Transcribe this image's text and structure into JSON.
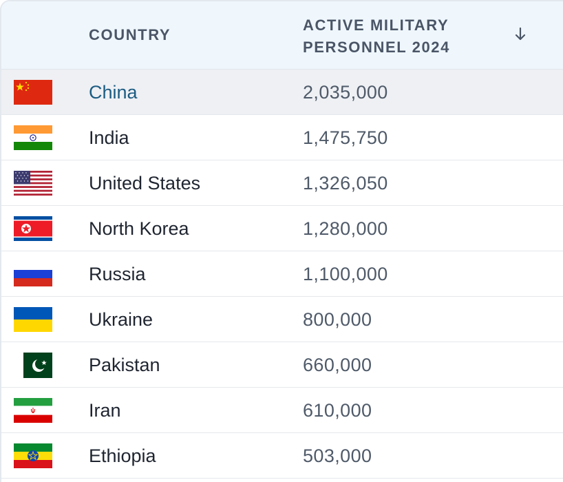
{
  "table": {
    "headers": {
      "country": "COUNTRY",
      "personnel": "ACTIVE MILITARY PERSONNEL 2024",
      "sort_icon": "arrow-down-icon"
    },
    "rows": [
      {
        "flag": "china-flag-icon",
        "country": "China",
        "personnel": "2,035,000"
      },
      {
        "flag": "india-flag-icon",
        "country": "India",
        "personnel": "1,475,750"
      },
      {
        "flag": "united-states-flag-icon",
        "country": "United States",
        "personnel": "1,326,050"
      },
      {
        "flag": "north-korea-flag-icon",
        "country": "North Korea",
        "personnel": "1,280,000"
      },
      {
        "flag": "russia-flag-icon",
        "country": "Russia",
        "personnel": "1,100,000"
      },
      {
        "flag": "ukraine-flag-icon",
        "country": "Ukraine",
        "personnel": "800,000"
      },
      {
        "flag": "pakistan-flag-icon",
        "country": "Pakistan",
        "personnel": "660,000"
      },
      {
        "flag": "iran-flag-icon",
        "country": "Iran",
        "personnel": "610,000"
      },
      {
        "flag": "ethiopia-flag-icon",
        "country": "Ethiopia",
        "personnel": "503,000"
      }
    ]
  },
  "colors": {
    "header_bg": "#eff7fd",
    "highlight_row_bg": "#eef0f4",
    "highlight_link": "#1d5c82",
    "text": "#1f2530",
    "value_text": "#4f5a69"
  }
}
